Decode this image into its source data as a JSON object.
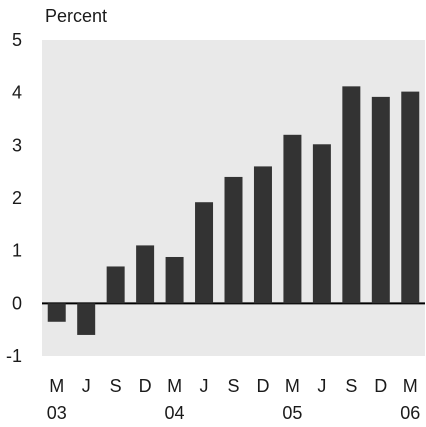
{
  "chart_data": {
    "type": "bar",
    "ylabel": "Percent",
    "ylim": [
      -1,
      5
    ],
    "yticks": [
      5,
      4,
      3,
      2,
      1,
      0,
      -1
    ],
    "grid": false,
    "categories": [
      "Mar 2003",
      "Jun 2003",
      "Sep 2003",
      "Dec 2003",
      "Mar 2004",
      "Jun 2004",
      "Sep 2004",
      "Dec 2004",
      "Mar 2005",
      "Jun 2005",
      "Sep 2005",
      "Dec 2005",
      "Mar 2006"
    ],
    "x_tick_labels": [
      "M",
      "J",
      "S",
      "D",
      "M",
      "J",
      "S",
      "D",
      "M",
      "J",
      "S",
      "D",
      "M"
    ],
    "x_year_labels": [
      "03",
      "04",
      "05",
      "06"
    ],
    "values": [
      -0.35,
      -0.6,
      0.7,
      1.1,
      0.88,
      1.92,
      2.4,
      2.6,
      3.2,
      3.02,
      4.12,
      3.92,
      4.02
    ],
    "colors": {
      "bar": "#333333",
      "plot_bg": "#e9e9e9",
      "zero_line": "#000000"
    }
  }
}
